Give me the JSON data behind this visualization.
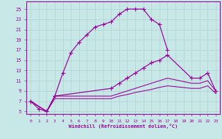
{
  "xlabel": "Windchill (Refroidissement éolien,°C)",
  "xlim": [
    -0.5,
    23.5
  ],
  "ylim": [
    4.5,
    26.5
  ],
  "yticks": [
    5,
    7,
    9,
    11,
    13,
    15,
    17,
    19,
    21,
    23,
    25
  ],
  "xticks": [
    0,
    1,
    2,
    3,
    4,
    5,
    6,
    7,
    8,
    9,
    10,
    11,
    12,
    13,
    14,
    15,
    16,
    17,
    18,
    19,
    20,
    21,
    22,
    23
  ],
  "background_color": "#c8e8e8",
  "grid_color": "#b0d0d0",
  "line_color": "#990099",
  "curve1_x": [
    0,
    1,
    2,
    3,
    4,
    5,
    6,
    7,
    8,
    9,
    10,
    11,
    12,
    13,
    14,
    15,
    16,
    17
  ],
  "curve1_y": [
    7.0,
    5.5,
    5.0,
    8.0,
    12.5,
    16.5,
    18.5,
    20.0,
    21.5,
    22.0,
    22.5,
    24.0,
    25.0,
    25.0,
    25.0,
    23.0,
    22.0,
    17.0
  ],
  "curve2_x": [
    0,
    2,
    3,
    10,
    11,
    12,
    13,
    14,
    15,
    16,
    17,
    20,
    21,
    22,
    23
  ],
  "curve2_y": [
    7.0,
    5.0,
    8.0,
    9.5,
    10.5,
    11.5,
    12.5,
    13.5,
    14.5,
    15.0,
    16.0,
    11.5,
    11.5,
    12.5,
    9.0
  ],
  "curve3_x": [
    0,
    2,
    3,
    10,
    11,
    12,
    13,
    14,
    15,
    16,
    17,
    20,
    21,
    22,
    23
  ],
  "curve3_y": [
    7.0,
    5.0,
    8.0,
    8.0,
    8.5,
    9.0,
    9.5,
    10.0,
    10.5,
    11.0,
    11.5,
    10.5,
    10.5,
    11.0,
    9.0
  ],
  "curve4_x": [
    0,
    2,
    3,
    10,
    11,
    12,
    13,
    14,
    15,
    16,
    17,
    20,
    21,
    22,
    23
  ],
  "curve4_y": [
    7.0,
    5.0,
    7.5,
    7.5,
    8.0,
    8.3,
    8.7,
    9.0,
    9.3,
    9.7,
    10.0,
    9.5,
    9.5,
    10.0,
    8.5
  ]
}
